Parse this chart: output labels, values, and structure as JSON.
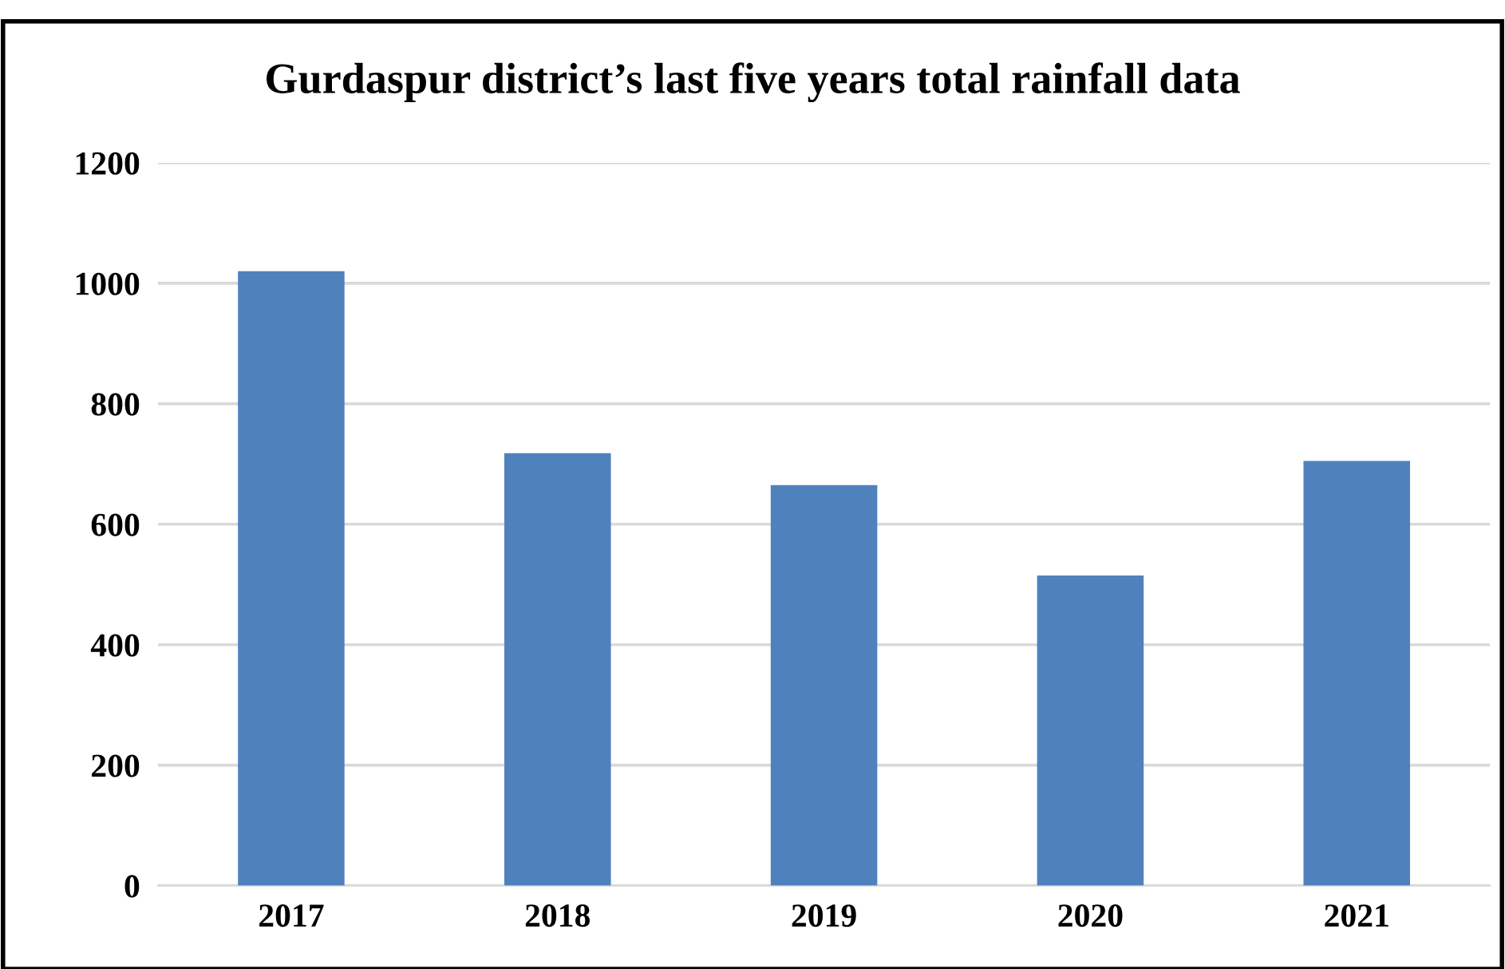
{
  "chart_data": {
    "type": "bar",
    "title": "Gurdaspur district’s last five years total rainfall data",
    "categories": [
      "2017",
      "2018",
      "2019",
      "2020",
      "2021"
    ],
    "values": [
      1020,
      718,
      665,
      515,
      705
    ],
    "color": "#4f81bd",
    "ylim": [
      0,
      1200
    ],
    "yticks": [
      0,
      200,
      400,
      600,
      800,
      1000,
      1200
    ],
    "grid": "y"
  }
}
